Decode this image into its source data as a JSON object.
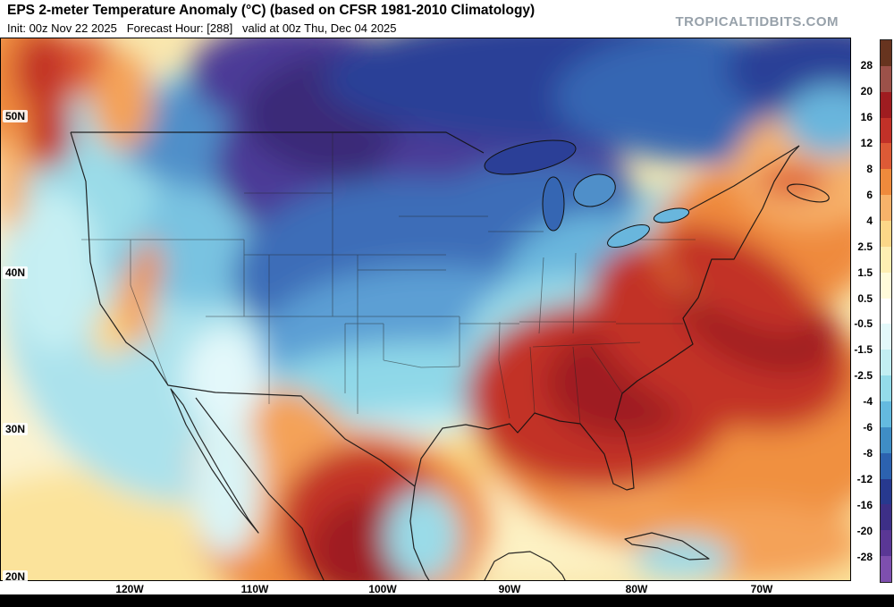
{
  "header": {
    "title": "EPS 2-meter Temperature Anomaly (°C) (based on CFSR 1981-2010 Climatology)",
    "init_line": "Init: 00z Nov 22 2025   Forecast Hour: [288]   valid at 00z Thu, Dec 04 2025",
    "watermark": "TROPICALTIDBITS.COM"
  },
  "axes": {
    "lat_labels": [
      "50N",
      "40N",
      "30N",
      "20N"
    ],
    "lon_labels": [
      "120W",
      "110W",
      "100W",
      "90W",
      "80W",
      "70W"
    ]
  },
  "colorbar": {
    "unit": "°C",
    "tick_labels": [
      "28",
      "20",
      "16",
      "12",
      "8",
      "6",
      "4",
      "2.5",
      "1.5",
      "0.5",
      "-0.5",
      "-1.5",
      "-2.5",
      "-4",
      "-6",
      "-8",
      "-12",
      "-16",
      "-20",
      "-28"
    ],
    "segment_colors_top_to_bottom": [
      "#67341f",
      "#9c5149",
      "#9f1c20",
      "#c23128",
      "#dd5a36",
      "#ef8a3c",
      "#f7b26a",
      "#fcd788",
      "#feeeb2",
      "#fffbda",
      "#ffffff",
      "#e3f8fa",
      "#c2eef2",
      "#94dbe9",
      "#64badf",
      "#3f8dc5",
      "#2c62af",
      "#27398f",
      "#3d2f87",
      "#5a3795",
      "#7e4fae"
    ]
  },
  "chart_data": {
    "type": "heatmap",
    "title": "EPS 2-meter Temperature Anomaly (°C)",
    "legend_levels_degC": [
      28,
      20,
      16,
      12,
      8,
      6,
      4,
      2.5,
      1.5,
      0.5,
      -0.5,
      -1.5,
      -2.5,
      -4,
      -6,
      -8,
      -12,
      -16,
      -20,
      -28
    ],
    "legend_position": "right",
    "notable_features": [
      {
        "region": "Northern Plains / Upper Midwest / south-central Canada",
        "anomaly_degC": "-12 to -28"
      },
      {
        "region": "Central Plains, Rockies and Midwest",
        "anomaly_degC": "-4 to -12"
      },
      {
        "region": "Southeast US coast and western Atlantic",
        "anomaly_degC": "+8 to +16"
      },
      {
        "region": "Interior Mexico",
        "anomaly_degC": "+8 to +20"
      },
      {
        "region": "Western US / Pacific Northwest",
        "anomaly_degC": "-1 to -6 with scattered coastal warm patches"
      },
      {
        "region": "Gulf of Mexico, Caribbean and subtropical Atlantic",
        "anomaly_degC": "0 to +4"
      }
    ]
  }
}
